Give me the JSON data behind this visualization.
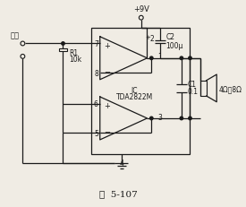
{
  "title": "图  5-107",
  "ic_label1": "IC",
  "ic_label2": "TDA2822M",
  "vcc_label": "+9V",
  "r1_label1": "R1",
  "r1_label2": "10k",
  "c1_label1": "C1",
  "c1_label2": "0.1",
  "c2_label1": "C2",
  "c2_label2": "100μ",
  "speaker_label": "4Ω－8Ω",
  "input_label": "输入",
  "line_color": "#1a1a1a",
  "bg_color": "#f0ece4",
  "fontsize_pin": 5.5,
  "fontsize_label": 6.0,
  "fontsize_title": 7.5
}
